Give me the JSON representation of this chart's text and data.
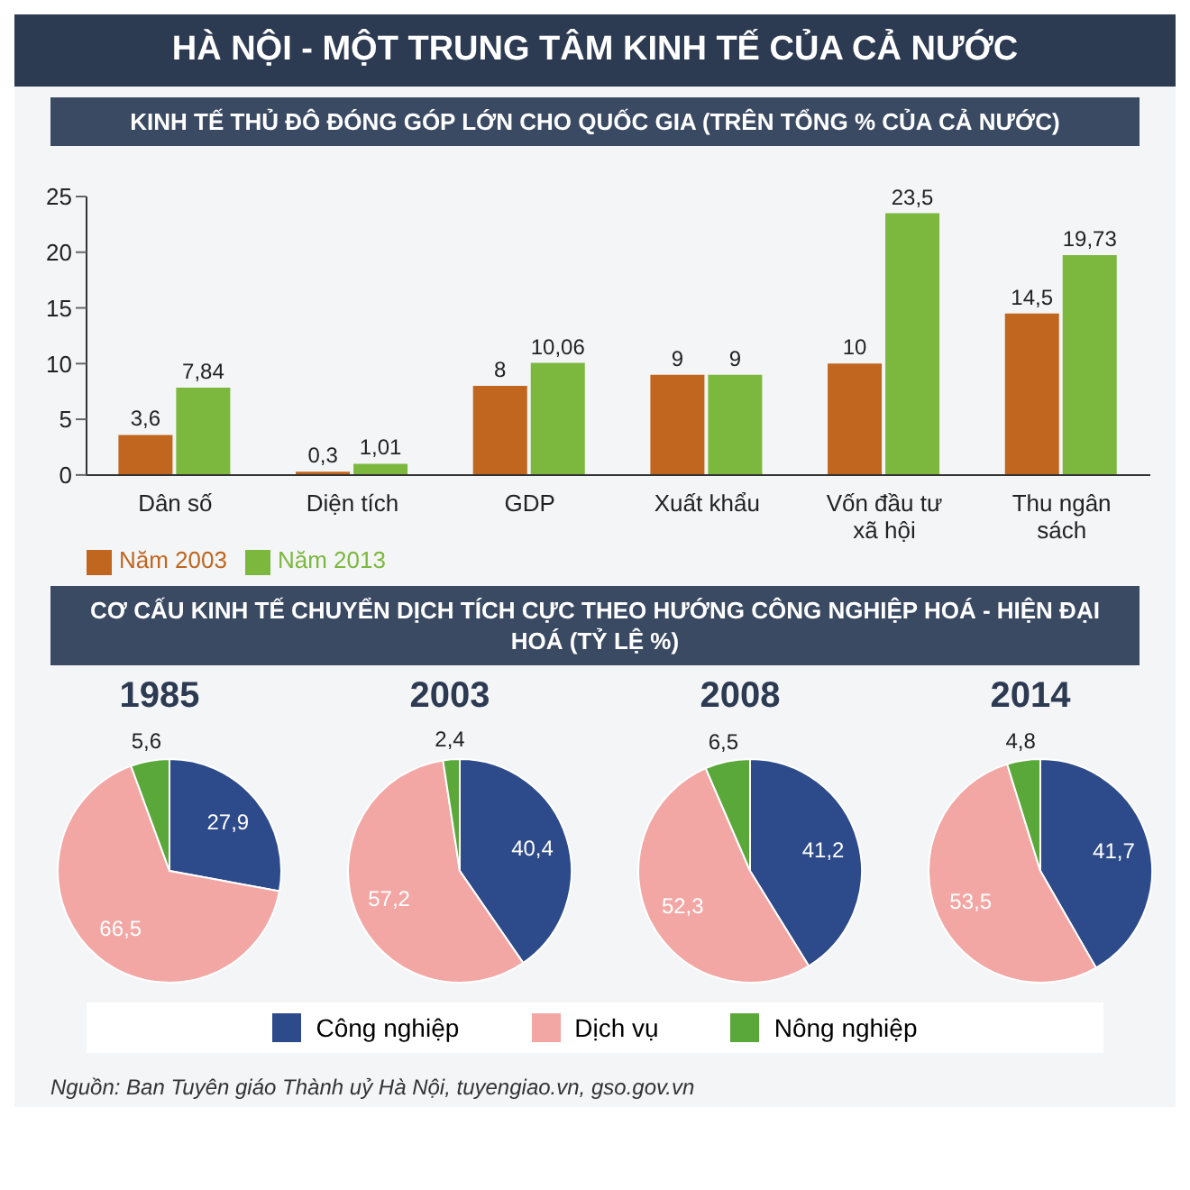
{
  "chart_data": [
    {
      "type": "bar",
      "title": "HÀ NỘI - MỘT TRUNG TÂM KINH TẾ CỦA CẢ NƯỚC",
      "subtitle": "KINH TẾ THỦ ĐÔ ĐÓNG GÓP LỚN CHO QUỐC GIA (TRÊN TỔNG % CỦA CẢ NƯỚC)",
      "categories": [
        "Dân số",
        "Diện tích",
        "GDP",
        "Xuất khẩu",
        "Vốn đầu tư xã hội",
        "Thu ngân sách"
      ],
      "series": [
        {
          "name": "Năm 2003",
          "color": "#c0661f",
          "values": [
            3.6,
            0.3,
            8,
            9,
            10,
            14.5
          ],
          "value_labels": [
            "3,6",
            "0,3",
            "8",
            "9",
            "10",
            "14,5"
          ]
        },
        {
          "name": "Năm 2013",
          "color": "#7cb83e",
          "values": [
            7.84,
            1.01,
            10.06,
            9,
            23.5,
            19.73
          ],
          "value_labels": [
            "7,84",
            "1,01",
            "10,06",
            "9",
            "23,5",
            "19,73"
          ]
        }
      ],
      "ylim": [
        0,
        25
      ],
      "yticks": [
        0,
        5,
        10,
        15,
        20,
        25
      ],
      "grid": false,
      "legend": "bottom left"
    },
    {
      "type": "pie",
      "title": "1985",
      "subtitle": "CƠ CẤU KINH TẾ CHUYỂN DỊCH TÍCH CỰC THEO HƯỚNG CÔNG NGHIỆP HOÁ - HIỆN ĐẠI HOÁ (TỶ LỆ %)",
      "categories": [
        "Công nghiệp",
        "Dịch vụ",
        "Nông nghiệp"
      ],
      "values": [
        27.9,
        66.5,
        5.6
      ],
      "value_labels": [
        "27,9",
        "66,5",
        "5,6"
      ],
      "colors": [
        "#2d4a8a",
        "#f2a7a4",
        "#5aa83a"
      ],
      "legend": "bottom"
    },
    {
      "type": "pie",
      "title": "2003",
      "values": [
        40.4,
        57.2,
        2.4
      ],
      "value_labels": [
        "40,4",
        "57,2",
        "2,4"
      ],
      "colors": [
        "#2d4a8a",
        "#f2a7a4",
        "#5aa83a"
      ]
    },
    {
      "type": "pie",
      "title": "2008",
      "values": [
        41.2,
        52.3,
        6.5
      ],
      "value_labels": [
        "41,2",
        "52,3",
        "6,5"
      ],
      "colors": [
        "#2d4a8a",
        "#f2a7a4",
        "#5aa83a"
      ]
    },
    {
      "type": "pie",
      "title": "2014",
      "values": [
        41.7,
        53.5,
        4.8
      ],
      "value_labels": [
        "41,7",
        "53,5",
        "4,8"
      ],
      "colors": [
        "#2d4a8a",
        "#f2a7a4",
        "#5aa83a"
      ],
      "annotations": [
        "Nguồn: Ban Tuyên giáo Thành uỷ Hà Nội, tuyengiao.vn, gso.gov.vn"
      ]
    }
  ]
}
